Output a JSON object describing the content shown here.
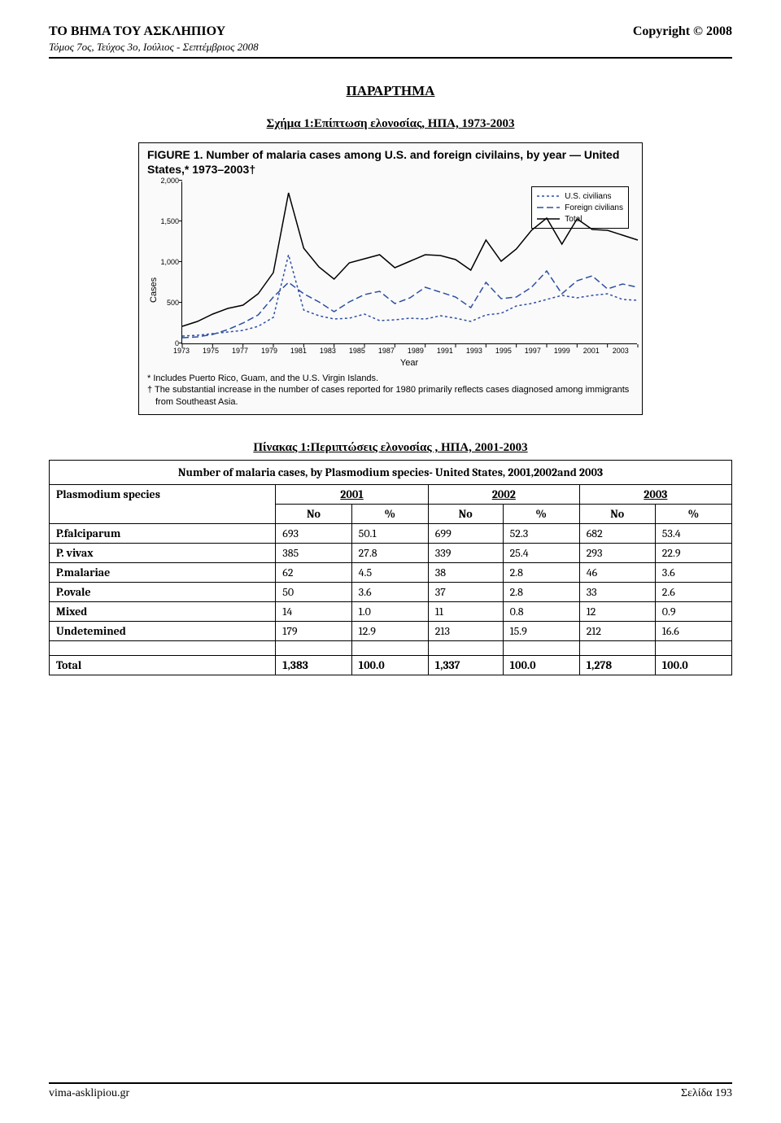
{
  "header": {
    "journal_title": "ΤΟ ΒΗΜΑ ΤΟΥ ΑΣΚΛΗΠΙΟΥ",
    "copyright": "Copyright © 2008",
    "subheader": "Τόμος 7ος, Τεύχος 3ο, Ιούλιος - Σεπτέμβριος 2008"
  },
  "appendix_title": "ΠΑΡΑΡΤΗΜΑ",
  "figure_caption": "Σχήμα 1:Επίπτωση ελονοσίας, ΗΠΑ, 1973-2003",
  "chart": {
    "title": "FIGURE 1. Number of malaria cases among U.S. and foreign civilains, by year — United States,* 1973–2003†",
    "x_label": "Year",
    "y_label": "Cases",
    "y_ticks": [
      0,
      500,
      1000,
      1500,
      2000
    ],
    "x_ticks": [
      1973,
      1975,
      1977,
      1979,
      1981,
      1983,
      1985,
      1987,
      1989,
      1991,
      1993,
      1995,
      1997,
      1999,
      2001,
      2003
    ],
    "ylim": [
      0,
      2000
    ],
    "xlim": [
      1973,
      2003
    ],
    "legend": [
      {
        "label": "U.S. civilians",
        "color": "#2e4fa3",
        "dash": "3,3"
      },
      {
        "label": "Foreign civilians",
        "color": "#2e4fa3",
        "dash": "8,4"
      },
      {
        "label": "Total",
        "color": "#000000",
        "dash": "0"
      }
    ],
    "series": {
      "us_civilians": {
        "color": "#2e4fa3",
        "dash": "3,3",
        "x": [
          1973,
          1974,
          1975,
          1976,
          1977,
          1978,
          1979,
          1980,
          1981,
          1982,
          1983,
          1984,
          1985,
          1986,
          1987,
          1988,
          1989,
          1990,
          1991,
          1992,
          1993,
          1994,
          1995,
          1996,
          1997,
          1998,
          1999,
          2000,
          2001,
          2002,
          2003
        ],
        "y": [
          100,
          110,
          130,
          150,
          170,
          220,
          330,
          1100,
          420,
          350,
          310,
          320,
          370,
          290,
          300,
          320,
          310,
          350,
          320,
          280,
          360,
          380,
          470,
          500,
          550,
          600,
          570,
          600,
          620,
          550,
          540
        ]
      },
      "foreign_civilians": {
        "color": "#2e4fa3",
        "dash": "8,4",
        "x": [
          1973,
          1974,
          1975,
          1976,
          1977,
          1978,
          1979,
          1980,
          1981,
          1982,
          1983,
          1984,
          1985,
          1986,
          1987,
          1988,
          1989,
          1990,
          1991,
          1992,
          1993,
          1994,
          1995,
          1996,
          1997,
          1998,
          1999,
          2000,
          2001,
          2002,
          2003
        ],
        "y": [
          80,
          90,
          120,
          180,
          260,
          360,
          580,
          760,
          620,
          520,
          400,
          520,
          610,
          650,
          500,
          570,
          700,
          640,
          580,
          450,
          760,
          560,
          580,
          700,
          900,
          620,
          780,
          840,
          680,
          740,
          700
        ]
      },
      "total": {
        "color": "#000000",
        "dash": "0",
        "x": [
          1973,
          1974,
          1975,
          1976,
          1977,
          1978,
          1979,
          1980,
          1981,
          1982,
          1983,
          1984,
          1985,
          1986,
          1987,
          1988,
          1989,
          1990,
          1991,
          1992,
          1993,
          1994,
          1995,
          1996,
          1997,
          1998,
          1999,
          2000,
          2001,
          2002,
          2003
        ],
        "y": [
          220,
          280,
          370,
          440,
          480,
          620,
          880,
          1860,
          1180,
          950,
          800,
          1000,
          1050,
          1100,
          940,
          1020,
          1100,
          1090,
          1040,
          910,
          1280,
          1020,
          1170,
          1400,
          1550,
          1230,
          1540,
          1410,
          1400,
          1340,
          1280
        ]
      }
    },
    "footnotes": [
      "* Includes Puerto Rico, Guam, and the U.S. Virgin Islands.",
      "† The substantial increase in the number of cases reported for 1980 primarily reflects cases diagnosed among immigrants from Southeast Asia."
    ]
  },
  "table_caption": "Πίνακας 1:Περιπτώσεις ελονοσίας , ΗΠΑ, 2001-2003",
  "table": {
    "title": "Number of malaria cases, by Plasmodium species- United States, 2001,2002and 2003",
    "species_header": "Plasmodium species",
    "year_headers": [
      "2001",
      "2002",
      "2003"
    ],
    "sub_headers": [
      "No",
      "%",
      "No",
      "%",
      "No",
      "%"
    ],
    "rows": [
      {
        "label": "P.falciparum",
        "c": [
          "693",
          "50.1",
          "699",
          "52.3",
          "682",
          "53.4"
        ]
      },
      {
        "label": "P. vivax",
        "c": [
          "385",
          "27.8",
          "339",
          "25.4",
          "293",
          "22.9"
        ]
      },
      {
        "label": "P.malariae",
        "c": [
          "62",
          "4.5",
          "38",
          "2.8",
          "46",
          "3.6"
        ]
      },
      {
        "label": "P.ovale",
        "c": [
          "50",
          "3.6",
          "37",
          "2.8",
          "33",
          "2.6"
        ]
      },
      {
        "label": "Mixed",
        "c": [
          "14",
          "1.0",
          "11",
          "0.8",
          "12",
          "0.9"
        ]
      },
      {
        "label": "Undetemined",
        "c": [
          "179",
          "12.9",
          "213",
          "15.9",
          "212",
          "16.6"
        ]
      }
    ],
    "total": {
      "label": "Total",
      "c": [
        "1,383",
        "100.0",
        "1,337",
        "100.0",
        "1,278",
        "100.0"
      ]
    }
  },
  "footer": {
    "left": "vima-asklipiou.gr",
    "right": "Σελίδα 193"
  }
}
